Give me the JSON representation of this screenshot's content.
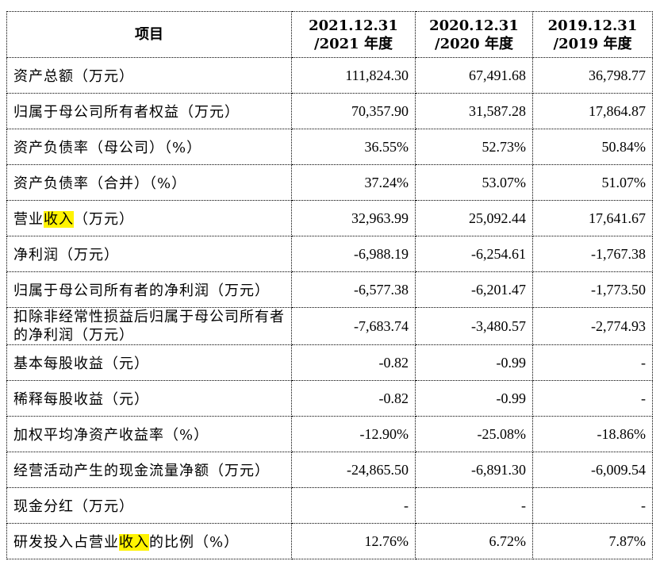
{
  "table": {
    "header": {
      "item": "项目",
      "col1_line1": "2021.12.31",
      "col1_line2": "/2021 年度",
      "col2_line1": "2020.12.31",
      "col2_line2": "/2020 年度",
      "col3_line1": "2019.12.31",
      "col3_line2": "/2019 年度"
    },
    "rows": [
      {
        "label": "资产总额（万元）",
        "v2021": "111,824.30",
        "v2020": "67,491.68",
        "v2019": "36,798.77"
      },
      {
        "label": "归属于母公司所有者权益（万元）",
        "v2021": "70,357.90",
        "v2020": "31,587.28",
        "v2019": "17,864.87"
      },
      {
        "label": "资产负债率（母公司）（%）",
        "v2021": "36.55%",
        "v2020": "52.73%",
        "v2019": "50.84%"
      },
      {
        "label": "资产负债率（合并）（%）",
        "v2021": "37.24%",
        "v2020": "53.07%",
        "v2019": "51.07%"
      },
      {
        "label_pre": "营业",
        "label_hl": "收入",
        "label_post": "（万元）",
        "v2021": "32,963.99",
        "v2020": "25,092.44",
        "v2019": "17,641.67"
      },
      {
        "label": "净利润（万元）",
        "v2021": "-6,988.19",
        "v2020": "-6,254.61",
        "v2019": "-1,767.38"
      },
      {
        "label": "归属于母公司所有者的净利润（万元）",
        "v2021": "-6,577.38",
        "v2020": "-6,201.47",
        "v2019": "-1,773.50"
      },
      {
        "label": "扣除非经常性损益后归属于母公司所有者的净利润（万元）",
        "v2021": "-7,683.74",
        "v2020": "-3,480.57",
        "v2019": "-2,774.93"
      },
      {
        "label": "基本每股收益（元）",
        "v2021": "-0.82",
        "v2020": "-0.99",
        "v2019": "-"
      },
      {
        "label": "稀释每股收益（元）",
        "v2021": "-0.82",
        "v2020": "-0.99",
        "v2019": "-"
      },
      {
        "label": "加权平均净资产收益率（%）",
        "v2021": "-12.90%",
        "v2020": "-25.08%",
        "v2019": "-18.86%"
      },
      {
        "label": "经营活动产生的现金流量净额（万元）",
        "v2021": "-24,865.50",
        "v2020": "-6,891.30",
        "v2019": "-6,009.54"
      },
      {
        "label": "现金分红（万元）",
        "v2021": "-",
        "v2020": "-",
        "v2019": "-"
      },
      {
        "label_pre": "研发投入占营业",
        "label_hl": "收入",
        "label_post": "的比例（%）",
        "v2021": "12.76%",
        "v2020": "6.72%",
        "v2019": "7.87%"
      }
    ]
  },
  "colors": {
    "highlight": "#fff300",
    "border": "#000000"
  }
}
